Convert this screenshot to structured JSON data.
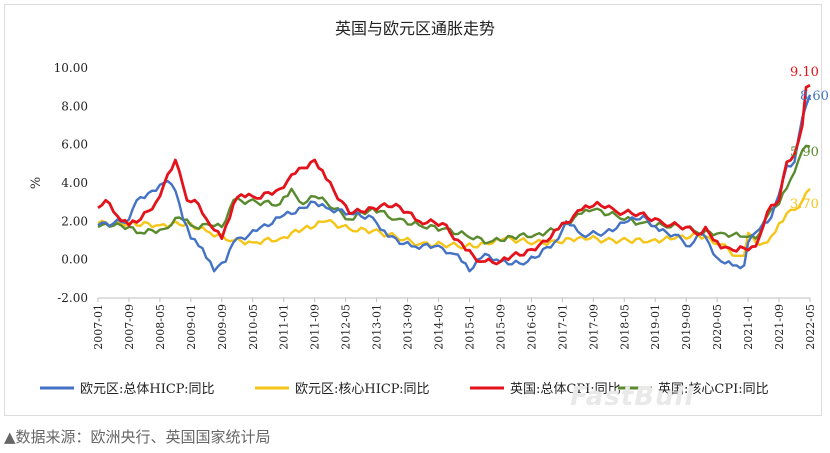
{
  "chart_data": {
    "type": "line",
    "title": "英国与欧元区通胀走势",
    "ylabel": "%",
    "ylim": [
      -2,
      10
    ],
    "yticks": [
      -2,
      0,
      2,
      4,
      6,
      8,
      10
    ],
    "ytick_labels": [
      "-2.00",
      "0.00",
      "2.00",
      "4.00",
      "6.00",
      "8.00",
      "10.00"
    ],
    "x_start": "2007-01",
    "x_end": "2022-05",
    "x_tick_labels": [
      "2007-01",
      "2007-09",
      "2008-05",
      "2009-01",
      "2009-09",
      "2010-05",
      "2011-01",
      "2011-09",
      "2012-05",
      "2013-01",
      "2013-09",
      "2014-05",
      "2015-01",
      "2015-09",
      "2016-05",
      "2017-01",
      "2017-09",
      "2018-05",
      "2019-01",
      "2019-09",
      "2020-05",
      "2021-01",
      "2021-09",
      "2022-05"
    ],
    "grid": false,
    "legend_position": "bottom",
    "series": [
      {
        "name": "欧元区:总体HICP:同比",
        "color": "#4472c4",
        "end_label": "8.60",
        "anchors": [
          [
            "2007-01",
            1.8
          ],
          [
            "2007-05",
            1.9
          ],
          [
            "2007-09",
            2.1
          ],
          [
            "2007-11",
            3.1
          ],
          [
            "2008-03",
            3.6
          ],
          [
            "2008-06",
            4.0
          ],
          [
            "2008-07",
            4.1
          ],
          [
            "2008-09",
            3.6
          ],
          [
            "2008-11",
            2.1
          ],
          [
            "2009-01",
            1.1
          ],
          [
            "2009-04",
            0.6
          ],
          [
            "2009-07",
            -0.6
          ],
          [
            "2009-10",
            -0.1
          ],
          [
            "2009-12",
            0.9
          ],
          [
            "2010-06",
            1.5
          ],
          [
            "2010-12",
            2.2
          ],
          [
            "2011-06",
            2.7
          ],
          [
            "2011-09",
            3.0
          ],
          [
            "2011-12",
            2.7
          ],
          [
            "2012-06",
            2.4
          ],
          [
            "2012-12",
            2.2
          ],
          [
            "2013-04",
            1.2
          ],
          [
            "2013-10",
            0.7
          ],
          [
            "2014-04",
            0.7
          ],
          [
            "2014-09",
            0.3
          ],
          [
            "2014-12",
            -0.2
          ],
          [
            "2015-01",
            -0.6
          ],
          [
            "2015-05",
            0.3
          ],
          [
            "2015-09",
            -0.1
          ],
          [
            "2016-02",
            -0.2
          ],
          [
            "2016-06",
            0.1
          ],
          [
            "2016-12",
            1.1
          ],
          [
            "2017-02",
            2.0
          ],
          [
            "2017-06",
            1.3
          ],
          [
            "2017-12",
            1.4
          ],
          [
            "2018-06",
            2.0
          ],
          [
            "2018-10",
            2.3
          ],
          [
            "2019-02",
            1.5
          ],
          [
            "2019-06",
            1.3
          ],
          [
            "2019-10",
            0.7
          ],
          [
            "2020-01",
            1.4
          ],
          [
            "2020-05",
            0.1
          ],
          [
            "2020-09",
            -0.3
          ],
          [
            "2020-12",
            -0.3
          ],
          [
            "2021-01",
            0.9
          ],
          [
            "2021-04",
            1.6
          ],
          [
            "2021-07",
            2.2
          ],
          [
            "2021-09",
            3.4
          ],
          [
            "2021-11",
            4.9
          ],
          [
            "2022-01",
            5.1
          ],
          [
            "2022-03",
            7.4
          ],
          [
            "2022-05",
            8.6
          ]
        ]
      },
      {
        "name": "欧元区:核心HICP:同比",
        "color": "#f5c518",
        "end_label": "3.70",
        "anchors": [
          [
            "2007-01",
            1.9
          ],
          [
            "2007-09",
            1.9
          ],
          [
            "2008-05",
            1.8
          ],
          [
            "2008-12",
            1.9
          ],
          [
            "2009-06",
            1.4
          ],
          [
            "2009-12",
            1.0
          ],
          [
            "2010-05",
            0.9
          ],
          [
            "2010-12",
            1.1
          ],
          [
            "2011-06",
            1.6
          ],
          [
            "2011-12",
            2.0
          ],
          [
            "2012-06",
            1.6
          ],
          [
            "2012-12",
            1.5
          ],
          [
            "2013-06",
            1.2
          ],
          [
            "2013-12",
            0.8
          ],
          [
            "2014-06",
            0.8
          ],
          [
            "2014-12",
            0.7
          ],
          [
            "2015-06",
            0.8
          ],
          [
            "2015-10",
            1.1
          ],
          [
            "2016-06",
            0.9
          ],
          [
            "2016-12",
            0.9
          ],
          [
            "2017-06",
            1.2
          ],
          [
            "2017-12",
            1.0
          ],
          [
            "2018-06",
            1.0
          ],
          [
            "2018-12",
            1.0
          ],
          [
            "2019-06",
            1.1
          ],
          [
            "2019-12",
            1.3
          ],
          [
            "2020-06",
            0.8
          ],
          [
            "2020-10",
            0.2
          ],
          [
            "2020-12",
            0.2
          ],
          [
            "2021-01",
            1.4
          ],
          [
            "2021-03",
            0.9
          ],
          [
            "2021-06",
            0.9
          ],
          [
            "2021-09",
            1.9
          ],
          [
            "2021-12",
            2.6
          ],
          [
            "2022-02",
            2.7
          ],
          [
            "2022-04",
            3.5
          ],
          [
            "2022-05",
            3.7
          ]
        ]
      },
      {
        "name": "英国:总体CPI:同比",
        "color": "#e3121b",
        "end_label": "9.10",
        "anchors": [
          [
            "2007-01",
            2.7
          ],
          [
            "2007-03",
            3.1
          ],
          [
            "2007-05",
            2.5
          ],
          [
            "2007-09",
            1.8
          ],
          [
            "2007-12",
            2.1
          ],
          [
            "2008-04",
            3.0
          ],
          [
            "2008-09",
            5.2
          ],
          [
            "2008-12",
            3.1
          ],
          [
            "2009-03",
            2.9
          ],
          [
            "2009-06",
            1.8
          ],
          [
            "2009-09",
            1.1
          ],
          [
            "2009-12",
            2.9
          ],
          [
            "2010-02",
            3.4
          ],
          [
            "2010-06",
            3.2
          ],
          [
            "2010-12",
            3.7
          ],
          [
            "2011-04",
            4.5
          ],
          [
            "2011-09",
            5.2
          ],
          [
            "2011-12",
            4.2
          ],
          [
            "2012-06",
            2.4
          ],
          [
            "2012-12",
            2.7
          ],
          [
            "2013-06",
            2.9
          ],
          [
            "2013-12",
            2.0
          ],
          [
            "2014-06",
            1.9
          ],
          [
            "2014-12",
            0.5
          ],
          [
            "2015-04",
            -0.1
          ],
          [
            "2015-09",
            -0.1
          ],
          [
            "2015-12",
            0.2
          ],
          [
            "2016-06",
            0.5
          ],
          [
            "2016-12",
            1.6
          ],
          [
            "2017-06",
            2.6
          ],
          [
            "2017-10",
            3.0
          ],
          [
            "2018-03",
            2.5
          ],
          [
            "2018-09",
            2.4
          ],
          [
            "2019-03",
            1.9
          ],
          [
            "2019-09",
            1.7
          ],
          [
            "2019-12",
            1.3
          ],
          [
            "2020-02",
            1.7
          ],
          [
            "2020-06",
            0.6
          ],
          [
            "2020-09",
            0.5
          ],
          [
            "2020-12",
            0.6
          ],
          [
            "2021-03",
            0.7
          ],
          [
            "2021-06",
            2.5
          ],
          [
            "2021-09",
            3.1
          ],
          [
            "2021-11",
            5.1
          ],
          [
            "2022-01",
            5.5
          ],
          [
            "2022-03",
            7.0
          ],
          [
            "2022-04",
            9.0
          ],
          [
            "2022-05",
            9.1
          ]
        ]
      },
      {
        "name": "英国:核心CPI:同比",
        "color": "#5a8a2e",
        "end_label": "5.90",
        "anchors": [
          [
            "2007-01",
            1.7
          ],
          [
            "2007-06",
            1.9
          ],
          [
            "2007-12",
            1.4
          ],
          [
            "2008-06",
            1.6
          ],
          [
            "2008-10",
            2.2
          ],
          [
            "2009-02",
            1.7
          ],
          [
            "2009-06",
            1.8
          ],
          [
            "2009-09",
            1.7
          ],
          [
            "2009-12",
            3.1
          ],
          [
            "2010-06",
            3.0
          ],
          [
            "2010-12",
            2.9
          ],
          [
            "2011-03",
            3.7
          ],
          [
            "2011-06",
            2.9
          ],
          [
            "2011-09",
            3.3
          ],
          [
            "2011-12",
            3.0
          ],
          [
            "2012-06",
            2.1
          ],
          [
            "2012-12",
            2.7
          ],
          [
            "2013-06",
            2.1
          ],
          [
            "2013-12",
            1.8
          ],
          [
            "2014-06",
            1.6
          ],
          [
            "2014-12",
            1.3
          ],
          [
            "2015-06",
            0.9
          ],
          [
            "2015-12",
            1.2
          ],
          [
            "2016-06",
            1.3
          ],
          [
            "2016-12",
            1.6
          ],
          [
            "2017-06",
            2.4
          ],
          [
            "2017-09",
            2.6
          ],
          [
            "2018-03",
            2.3
          ],
          [
            "2018-09",
            1.9
          ],
          [
            "2019-03",
            1.8
          ],
          [
            "2019-09",
            1.7
          ],
          [
            "2019-12",
            1.4
          ],
          [
            "2020-06",
            1.4
          ],
          [
            "2020-09",
            1.3
          ],
          [
            "2020-12",
            1.2
          ],
          [
            "2021-03",
            1.1
          ],
          [
            "2021-06",
            2.3
          ],
          [
            "2021-09",
            2.9
          ],
          [
            "2021-12",
            4.2
          ],
          [
            "2022-03",
            5.7
          ],
          [
            "2022-05",
            5.9
          ]
        ]
      }
    ]
  },
  "source_note": "▲数据来源：欧洲央行、英国国家统计局",
  "watermark": "FastBull"
}
